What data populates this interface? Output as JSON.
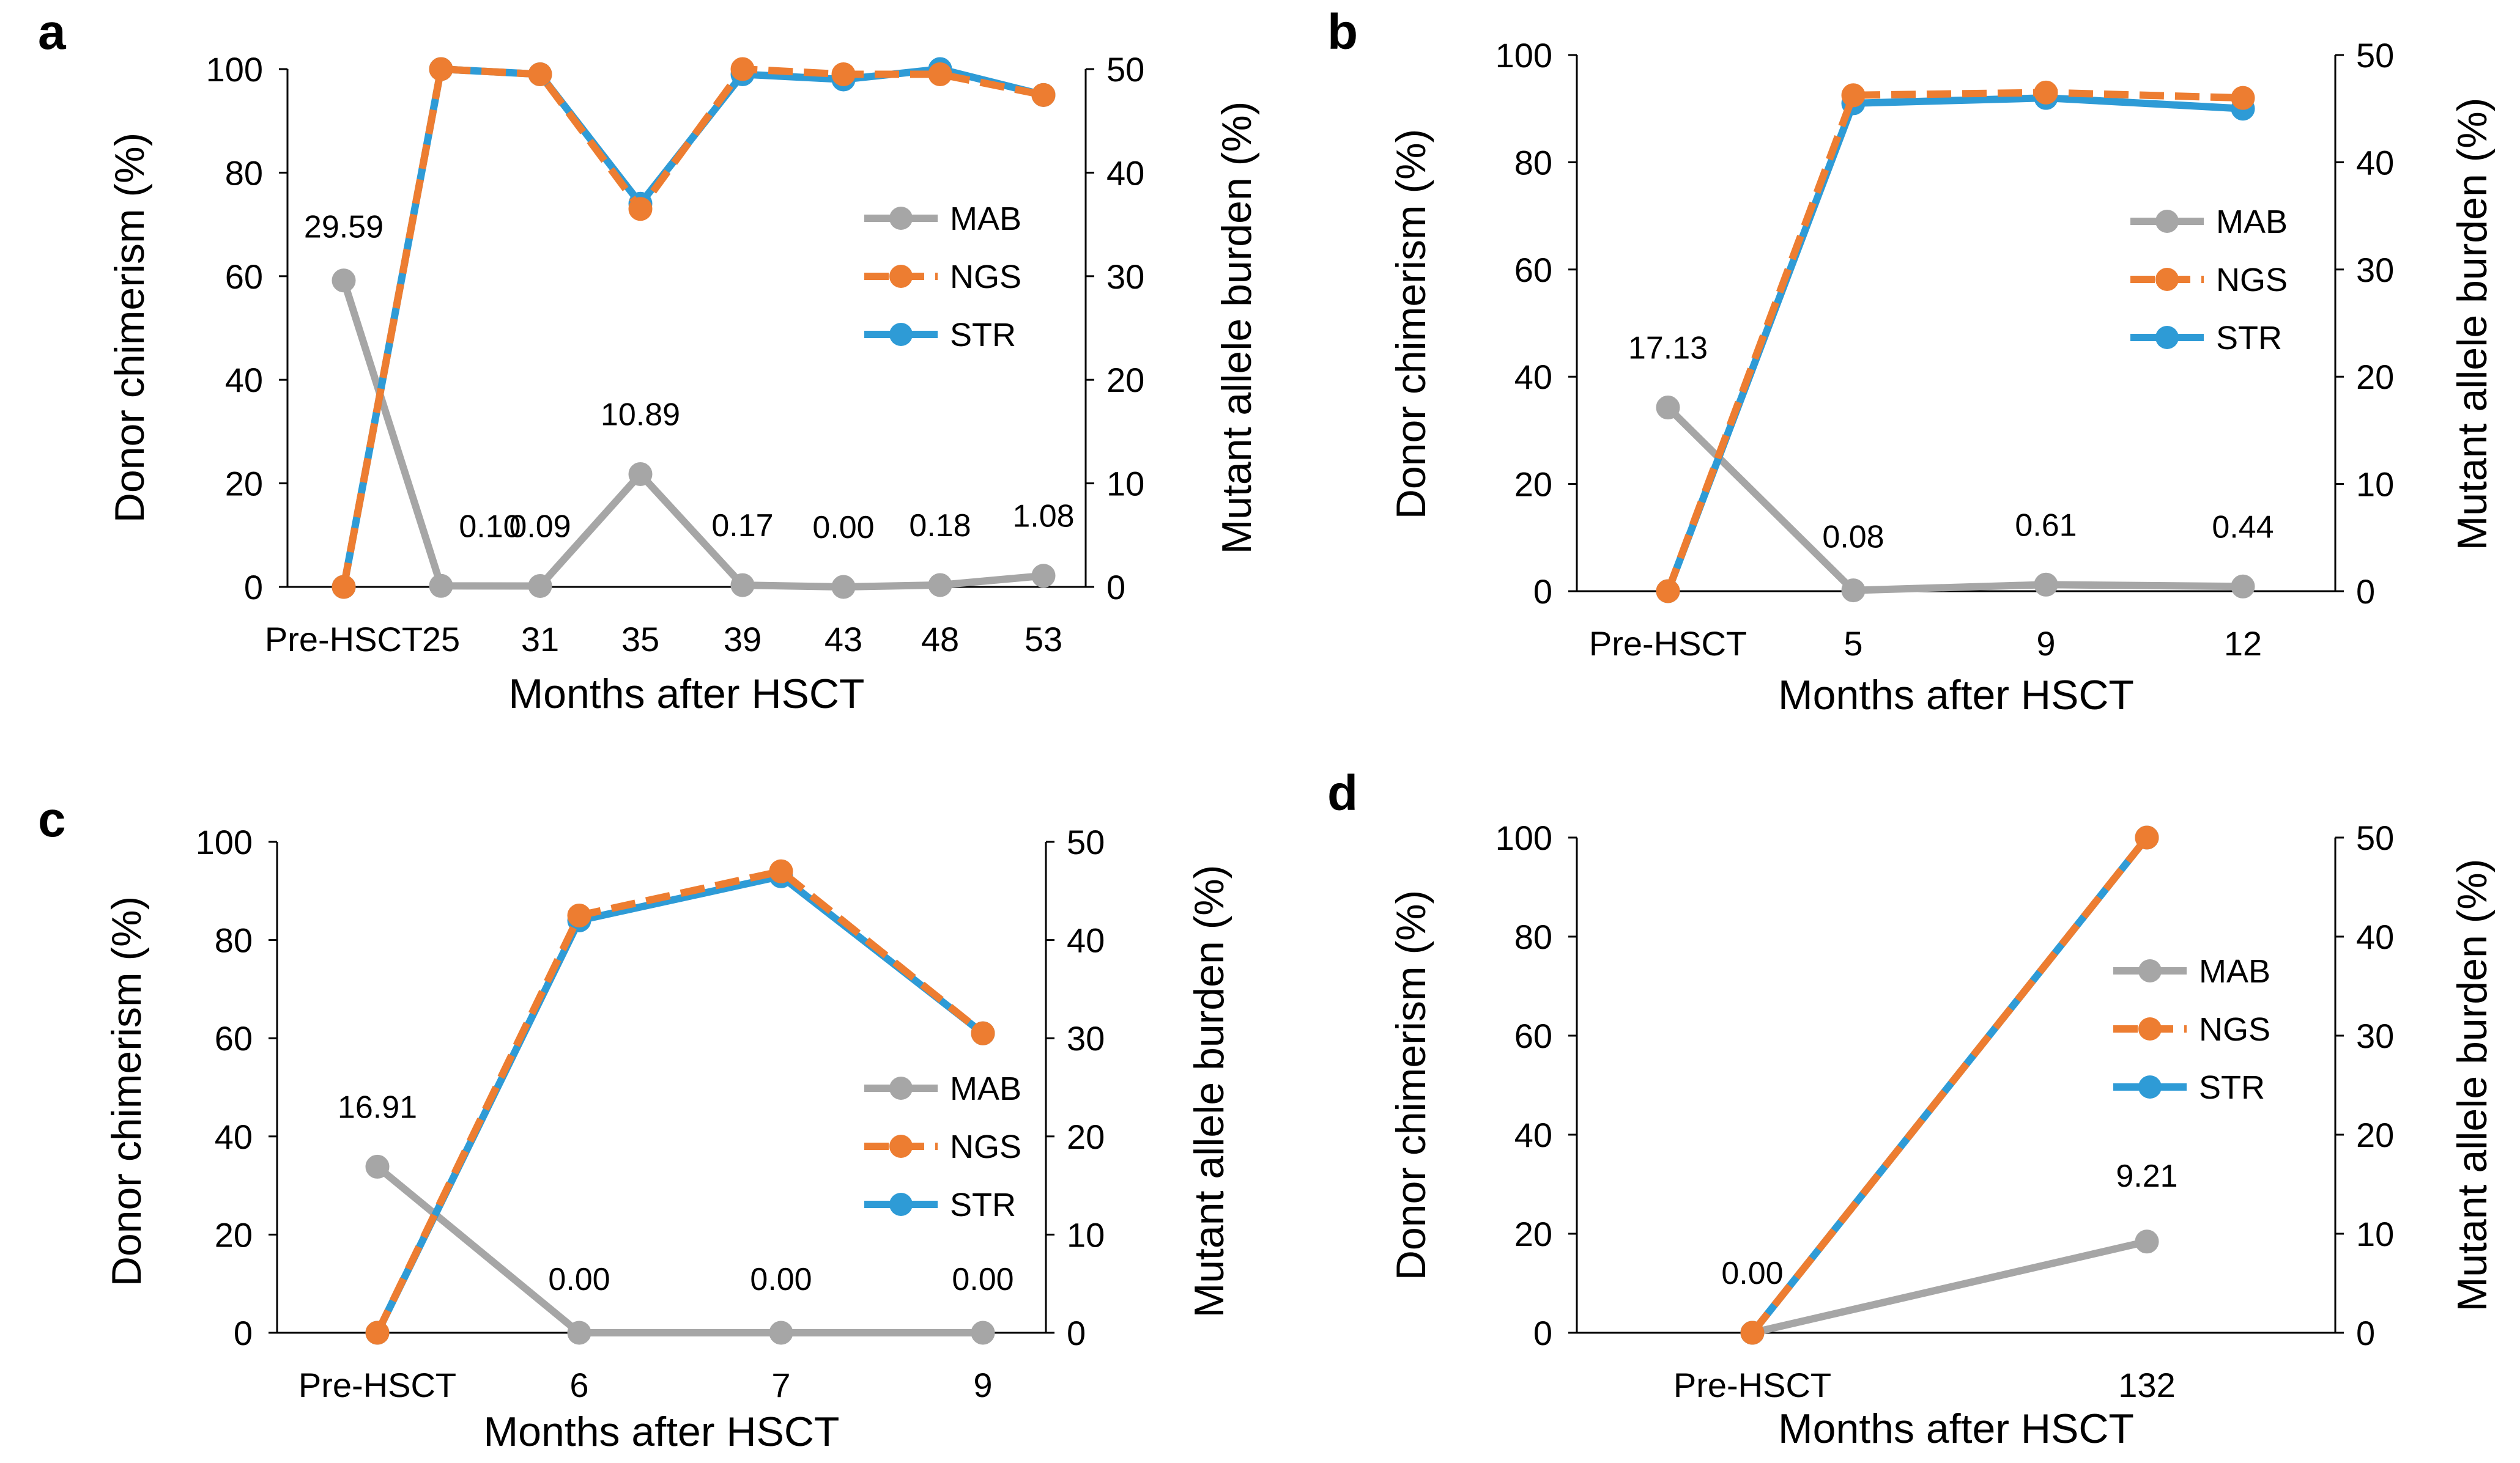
{
  "colors": {
    "MAB": "#a6a6a6",
    "NGS": "#ed7d31",
    "STR": "#2e9bd6",
    "axis": "#000000"
  },
  "chart_data": [
    {
      "panel": "a",
      "type": "line",
      "categories": [
        "Pre-HSCT",
        "25",
        "31",
        "35",
        "39",
        "43",
        "48",
        "53"
      ],
      "xlabel": "Months after HSCT",
      "ylabel": "Donor chimerism (%)",
      "y2label": "Mutant allele burden (%)",
      "ylim": [
        0,
        100
      ],
      "y2lim": [
        0,
        50
      ],
      "yticks": [
        "0",
        "20",
        "40",
        "60",
        "80",
        "100"
      ],
      "y2ticks": [
        "0",
        "10",
        "20",
        "30",
        "40",
        "50"
      ],
      "legend": [
        "MAB",
        "NGS",
        "STR"
      ],
      "series": [
        {
          "name": "MAB",
          "axis": "right",
          "values": [
            29.59,
            0.1,
            0.09,
            10.89,
            0.17,
            0.0,
            0.18,
            1.08
          ],
          "labels": [
            "29.59",
            "0.10",
            "0.09",
            "10.89",
            "0.17",
            "0.00",
            "0.18",
            "1.08"
          ]
        },
        {
          "name": "STR",
          "axis": "left",
          "values": [
            0,
            100,
            99,
            74,
            99,
            98,
            100,
            95
          ]
        },
        {
          "name": "NGS",
          "axis": "left",
          "values": [
            0,
            100,
            99,
            73,
            100,
            99,
            99,
            95
          ]
        }
      ]
    },
    {
      "panel": "b",
      "type": "line",
      "categories": [
        "Pre-HSCT",
        "5",
        "9",
        "12"
      ],
      "xlabel": "Months after HSCT",
      "ylabel": "Donor chimerism (%)",
      "y2label": "Mutant allele burden (%)",
      "ylim": [
        0,
        100
      ],
      "y2lim": [
        0,
        50
      ],
      "yticks": [
        "0",
        "20",
        "40",
        "60",
        "80",
        "100"
      ],
      "y2ticks": [
        "0",
        "10",
        "20",
        "30",
        "40",
        "50"
      ],
      "legend": [
        "MAB",
        "NGS",
        "STR"
      ],
      "series": [
        {
          "name": "MAB",
          "axis": "right",
          "values": [
            17.13,
            0.08,
            0.61,
            0.44
          ],
          "labels": [
            "17.13",
            "0.08",
            "0.61",
            "0.44"
          ]
        },
        {
          "name": "STR",
          "axis": "left",
          "values": [
            0,
            91,
            92,
            90
          ]
        },
        {
          "name": "NGS",
          "axis": "left",
          "values": [
            0,
            92.5,
            93,
            92
          ]
        }
      ]
    },
    {
      "panel": "c",
      "type": "line",
      "categories": [
        "Pre-HSCT",
        "6",
        "7",
        "9"
      ],
      "xlabel": "Months after HSCT",
      "ylabel": "Donor chimerism (%)",
      "y2label": "Mutant allele burden (%)",
      "ylim": [
        0,
        100
      ],
      "y2lim": [
        0,
        50
      ],
      "yticks": [
        "0",
        "20",
        "40",
        "60",
        "80",
        "100"
      ],
      "y2ticks": [
        "0",
        "10",
        "20",
        "30",
        "40",
        "50"
      ],
      "legend": [
        "MAB",
        "NGS",
        "STR"
      ],
      "series": [
        {
          "name": "MAB",
          "axis": "right",
          "values": [
            16.91,
            0.0,
            0.0,
            0.0
          ],
          "labels": [
            "16.91",
            "0.00",
            "0.00",
            "0.00"
          ]
        },
        {
          "name": "STR",
          "axis": "left",
          "values": [
            0,
            84,
            93,
            61
          ]
        },
        {
          "name": "NGS",
          "axis": "left",
          "values": [
            0,
            85,
            94,
            61
          ]
        }
      ]
    },
    {
      "panel": "d",
      "type": "line",
      "categories": [
        "Pre-HSCT",
        "132"
      ],
      "xlabel": "Months after HSCT",
      "ylabel": "Donor chimerism (%)",
      "y2label": "Mutant allele burden (%)",
      "ylim": [
        0,
        100
      ],
      "y2lim": [
        0,
        50
      ],
      "yticks": [
        "0",
        "20",
        "40",
        "60",
        "80",
        "100"
      ],
      "y2ticks": [
        "0",
        "10",
        "20",
        "30",
        "40",
        "50"
      ],
      "legend": [
        "MAB",
        "NGS",
        "STR"
      ],
      "series": [
        {
          "name": "MAB",
          "axis": "right",
          "values": [
            0.0,
            9.21
          ],
          "labels": [
            "0.00",
            "9.21"
          ]
        },
        {
          "name": "STR",
          "axis": "left",
          "values": [
            0,
            100
          ]
        },
        {
          "name": "NGS",
          "axis": "left",
          "values": [
            0,
            100
          ]
        }
      ]
    }
  ]
}
